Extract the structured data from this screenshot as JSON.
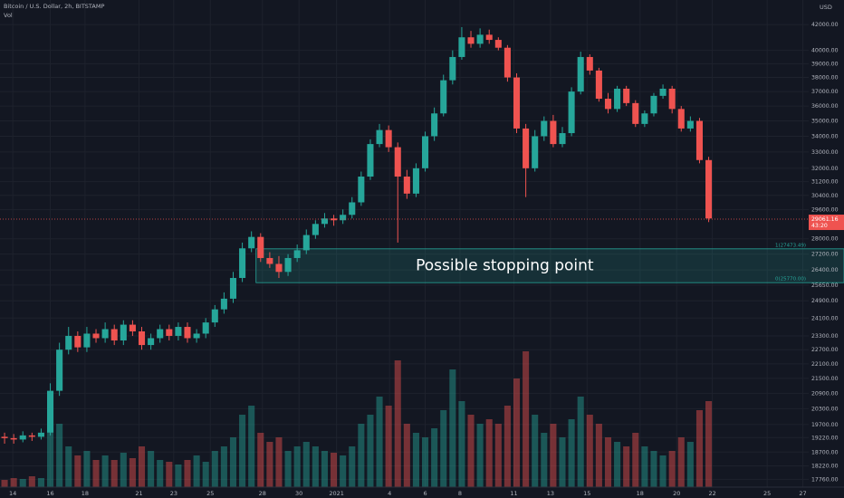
{
  "chart_data": {
    "type": "candlestick",
    "title": "Bitcoin / U.S. Dollar, 2h, BITSTAMP",
    "indicator": "Vol",
    "y_axis_label": "USD",
    "log_scale": true,
    "grid": true,
    "up_color": "#26a69a",
    "down_color": "#ef5350",
    "open": [
      19250,
      19200,
      19150,
      19300,
      19250,
      19400,
      21000,
      22700,
      23300,
      22800,
      23400,
      23200,
      23600,
      23100,
      23800,
      23500,
      22900,
      23200,
      23600,
      23300,
      23700,
      23200,
      23400,
      23900,
      24500,
      25000,
      26000,
      27500,
      28100,
      27000,
      26700,
      26300,
      27000,
      27400,
      28200,
      28800,
      29100,
      29000,
      29300,
      30000,
      31500,
      33500,
      34400,
      33300,
      31500,
      30500,
      32000,
      34000,
      35500,
      37800,
      39500,
      41000,
      40500,
      41200,
      40800,
      40200,
      38000,
      34500,
      32000,
      34000,
      35000,
      33500,
      34200,
      37000,
      39500,
      38500,
      36500,
      35800,
      37200,
      36200,
      34800,
      35500,
      36700,
      37200,
      35800,
      34500,
      35000,
      32500
    ],
    "high": [
      19400,
      19350,
      19450,
      19400,
      19550,
      21300,
      23000,
      23700,
      23500,
      23700,
      23600,
      23900,
      23800,
      24000,
      24000,
      23700,
      23400,
      23800,
      23800,
      23900,
      23900,
      23600,
      24100,
      24700,
      25300,
      26300,
      27800,
      28400,
      28300,
      27300,
      27100,
      27200,
      27700,
      28500,
      29000,
      29400,
      29300,
      29600,
      30300,
      31800,
      33800,
      34800,
      34700,
      33600,
      31900,
      32300,
      34300,
      35900,
      38200,
      40000,
      41800,
      41500,
      41700,
      41600,
      41000,
      40400,
      38300,
      34800,
      34400,
      35300,
      35400,
      34600,
      37300,
      39900,
      39700,
      38700,
      36900,
      37400,
      37400,
      36400,
      35700,
      36900,
      37500,
      37400,
      36000,
      35300,
      35200,
      32700
    ],
    "low": [
      19000,
      19000,
      19050,
      19100,
      19150,
      19300,
      20800,
      22500,
      22600,
      22600,
      23000,
      23000,
      22900,
      22900,
      23300,
      22700,
      22700,
      23000,
      23100,
      23100,
      23000,
      23000,
      23200,
      23700,
      24300,
      24800,
      25800,
      27300,
      26800,
      26500,
      26000,
      26100,
      26800,
      27200,
      28000,
      28600,
      28700,
      28800,
      29100,
      29800,
      31300,
      33300,
      33000,
      27800,
      30200,
      30300,
      31800,
      33700,
      35300,
      37500,
      39300,
      40200,
      40200,
      40500,
      40000,
      37700,
      34200,
      30300,
      31800,
      33700,
      33300,
      33300,
      34000,
      36800,
      38200,
      36300,
      35500,
      35600,
      36000,
      34600,
      34600,
      35300,
      36500,
      35500,
      34300,
      34300,
      32300,
      28900
    ],
    "close": [
      19200,
      19150,
      19300,
      19250,
      19400,
      21000,
      22700,
      23300,
      22800,
      23400,
      23200,
      23600,
      23100,
      23800,
      23500,
      22900,
      23200,
      23600,
      23300,
      23700,
      23200,
      23400,
      23900,
      24500,
      25000,
      26000,
      27500,
      28100,
      27000,
      26700,
      26300,
      27000,
      27400,
      28200,
      28800,
      29100,
      29000,
      29300,
      30000,
      31500,
      33500,
      34400,
      33300,
      31500,
      30500,
      32000,
      34000,
      35500,
      37800,
      39500,
      41000,
      40500,
      41200,
      40800,
      40200,
      38000,
      34500,
      32000,
      34000,
      35000,
      33500,
      34200,
      37000,
      39500,
      38500,
      36500,
      35800,
      37200,
      36200,
      34800,
      35500,
      36700,
      37200,
      35800,
      34500,
      35000,
      32500,
      29100
    ],
    "volume": [
      8,
      10,
      9,
      12,
      10,
      60,
      70,
      45,
      35,
      40,
      30,
      35,
      30,
      38,
      32,
      45,
      40,
      30,
      28,
      25,
      30,
      35,
      28,
      40,
      45,
      55,
      80,
      90,
      60,
      50,
      55,
      40,
      45,
      50,
      45,
      40,
      38,
      35,
      45,
      70,
      80,
      100,
      90,
      140,
      70,
      60,
      55,
      65,
      85,
      130,
      95,
      80,
      70,
      75,
      70,
      90,
      120,
      150,
      80,
      60,
      70,
      55,
      75,
      100,
      80,
      70,
      55,
      50,
      45,
      60,
      45,
      40,
      35,
      40,
      55,
      50,
      85,
      95
    ],
    "xlim": [
      -0.5,
      91.8
    ],
    "xticks": [
      {
        "value": 0.9,
        "label": "14"
      },
      {
        "value": 5.0,
        "label": "16"
      },
      {
        "value": 8.8,
        "label": "18"
      },
      {
        "value": 14.7,
        "label": "21"
      },
      {
        "value": 18.5,
        "label": "23"
      },
      {
        "value": 22.5,
        "label": "25"
      },
      {
        "value": 28.2,
        "label": "28"
      },
      {
        "value": 32.2,
        "label": "30"
      },
      {
        "value": 36.3,
        "label": "2021"
      },
      {
        "value": 42.1,
        "label": "4"
      },
      {
        "value": 46.0,
        "label": "6"
      },
      {
        "value": 49.8,
        "label": "8"
      },
      {
        "value": 55.7,
        "label": "11"
      },
      {
        "value": 59.7,
        "label": "13"
      },
      {
        "value": 63.7,
        "label": "15"
      },
      {
        "value": 69.5,
        "label": "18"
      },
      {
        "value": 73.5,
        "label": "20"
      },
      {
        "value": 77.4,
        "label": "22"
      },
      {
        "value": 83.4,
        "label": "25"
      },
      {
        "value": 87.3,
        "label": "27"
      }
    ],
    "ylim": [
      17500,
      44000
    ],
    "yticks": [
      {
        "value": 42000,
        "label": "42000.00"
      },
      {
        "value": 40000,
        "label": "40000.00"
      },
      {
        "value": 39000,
        "label": "39000.00"
      },
      {
        "value": 38000,
        "label": "38000.00"
      },
      {
        "value": 37000,
        "label": "37000.00"
      },
      {
        "value": 36000,
        "label": "36000.00"
      },
      {
        "value": 35000,
        "label": "35000.00"
      },
      {
        "value": 34000,
        "label": "34000.00"
      },
      {
        "value": 33000,
        "label": "33000.00"
      },
      {
        "value": 32000,
        "label": "32000.00"
      },
      {
        "value": 31200,
        "label": "31200.00"
      },
      {
        "value": 30400,
        "label": "30400.00"
      },
      {
        "value": 29600,
        "label": "29600.00"
      },
      {
        "value": 28000,
        "label": "28000.00"
      },
      {
        "value": 27200,
        "label": "27200.00"
      },
      {
        "value": 26400,
        "label": "26400.00"
      },
      {
        "value": 25650,
        "label": "25650.00"
      },
      {
        "value": 24900,
        "label": "24900.00"
      },
      {
        "value": 24100,
        "label": "24100.00"
      },
      {
        "value": 23300,
        "label": "23300.00"
      },
      {
        "value": 22700,
        "label": "22700.00"
      },
      {
        "value": 22100,
        "label": "22100.00"
      },
      {
        "value": 21500,
        "label": "21500.00"
      },
      {
        "value": 20900,
        "label": "20900.00"
      },
      {
        "value": 20300,
        "label": "20300.00"
      },
      {
        "value": 19700,
        "label": "19700.00"
      },
      {
        "value": 19220,
        "label": "19220.00"
      },
      {
        "value": 18700,
        "label": "18700.00"
      },
      {
        "value": 18220,
        "label": "18220.00"
      },
      {
        "value": 17760,
        "label": "17760.00"
      }
    ],
    "zone": {
      "text": "Possible stopping point",
      "x_start": 27.5,
      "top": 27473.49,
      "top_label": "1(27473.49)",
      "bottom": 25770,
      "bottom_label": "0(25770.00)"
    },
    "last_price": 29061.16,
    "countdown": "43:20"
  }
}
